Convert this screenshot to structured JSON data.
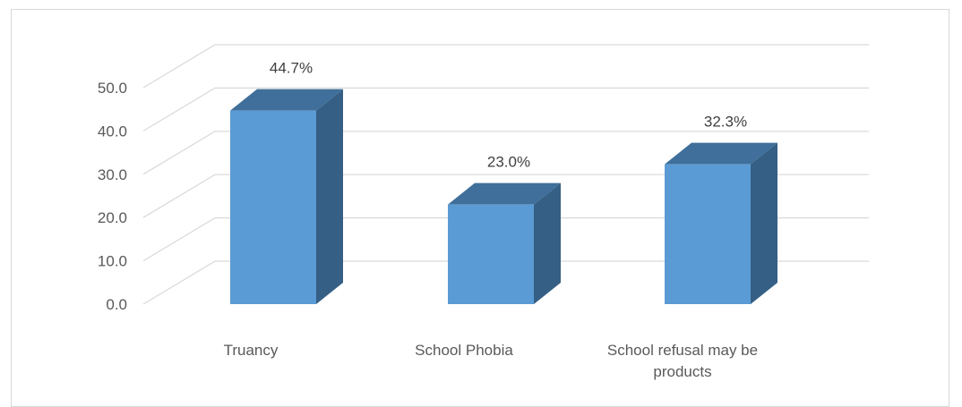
{
  "chart_data": {
    "type": "bar",
    "style": "3d-column",
    "categories": [
      "Truancy",
      "School Phobia",
      "School refusal may be products"
    ],
    "category_lines": [
      [
        "Truancy"
      ],
      [
        "School Phobia"
      ],
      [
        "School refusal may be",
        "products"
      ]
    ],
    "values": [
      44.7,
      23.0,
      32.3
    ],
    "data_labels": [
      "44.7%",
      "23.0%",
      "32.3%"
    ],
    "yticks": [
      "0.0",
      "10.0",
      "20.0",
      "30.0",
      "40.0",
      "50.0"
    ],
    "ylim": [
      0,
      50
    ],
    "grid": true,
    "legend": "none",
    "colors": {
      "front": "#5b9bd5",
      "side": "#355f85",
      "top": "#3f6f9a",
      "grid": "#d9d9d9",
      "text": "#595959"
    }
  }
}
